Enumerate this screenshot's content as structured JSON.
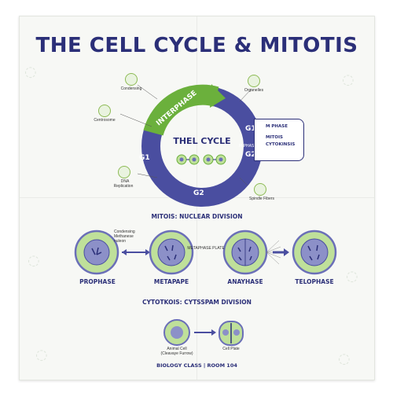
{
  "title": "THE CELL CYCLE & MITOTIS",
  "cycle": {
    "center_title": "THEL CYCLE",
    "interphase": "INTERPHASE",
    "g1_left": "G1",
    "g1_right": "G1",
    "g2_bottom": "G2",
    "g2_right": "G2",
    "m_phase_small": "M PHASE",
    "m_phase": "M PHASE",
    "mitosis": "MITOIS",
    "cytokinesis": "CYTOKINSIS"
  },
  "callouts": {
    "condensing": "Condensing",
    "organelles": "Organelles",
    "centrosome": "Centrosome",
    "dna_replication_1": "DNA",
    "dna_replication_2": "Replication",
    "spindle_fibers": "Spindle Fibers"
  },
  "mitosis_section": {
    "heading": "MITOIS: NUCLEAR DIVISION",
    "note_1": "Condensing",
    "note_2": "Methanese",
    "note_3": "nuleon",
    "plate_label": "METAPHASE PLATE",
    "stages": [
      "PROPHASE",
      "METAPAPE",
      "ANAYHASE",
      "TELOPHASE"
    ]
  },
  "cytokinesis_section": {
    "heading": "CYTOTKOIS: CYTSSPAM DIVISION",
    "animal_1": "Animal Cell",
    "animal_2": "(Cleavaye Furrow)",
    "plate": "Cell Plate"
  },
  "footer": "BIOLOGY CLASS | ROOM 104",
  "colors": {
    "navy": "#2b2f78",
    "indigo": "#4a4ea0",
    "green": "#6bb03c",
    "light_green": "#a6d27a",
    "cell_fill": "#bfe09a",
    "nucleus": "#6b6fb8"
  }
}
